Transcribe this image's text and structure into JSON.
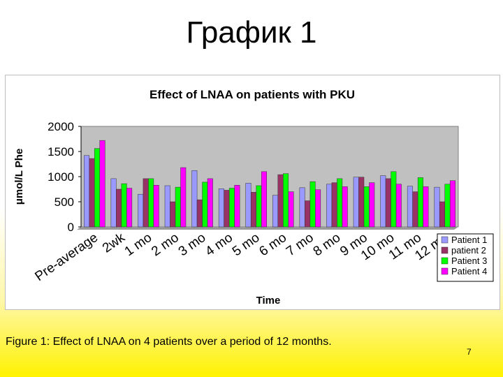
{
  "slide": {
    "title": "График 1",
    "caption": "Figure 1: Effect of LNAA on 4 patients over a period of 12 months.",
    "page_number": "7"
  },
  "chart_data": {
    "type": "bar",
    "title": "Effect of LNAA on patients with PKU",
    "xlabel": "Time",
    "ylabel": "μmol/L Phe",
    "ylim": [
      0,
      2000
    ],
    "yticks": [
      0,
      500,
      1000,
      1500,
      2000
    ],
    "grid": false,
    "legend_position": "bottom-right",
    "plot_background": "#c0c0c0",
    "categories": [
      "Pre-average",
      "2wk",
      "1 mo",
      "2 mo",
      "3 mo",
      "4 mo",
      "5 mo",
      "6 mo",
      "7 mo",
      "8 mo",
      "9 mo",
      "10 mo",
      "11 mo",
      "12 mo"
    ],
    "series": [
      {
        "name": "Patient 1",
        "color": "#9999ff",
        "values": [
          1420,
          960,
          650,
          820,
          1120,
          760,
          870,
          630,
          780,
          850,
          990,
          1020,
          810,
          790
        ]
      },
      {
        "name": "patient 2",
        "color": "#993366",
        "values": [
          1360,
          750,
          960,
          500,
          540,
          730,
          690,
          1040,
          520,
          880,
          990,
          960,
          700,
          500
        ]
      },
      {
        "name": "Patient 3",
        "color": "#00ff00",
        "values": [
          1560,
          860,
          960,
          790,
          890,
          770,
          820,
          1060,
          900,
          960,
          800,
          1100,
          980,
          850
        ]
      },
      {
        "name": "Patient 4",
        "color": "#ff00ff",
        "values": [
          1720,
          770,
          830,
          1180,
          960,
          830,
          1100,
          700,
          740,
          800,
          880,
          850,
          800,
          920
        ]
      }
    ]
  }
}
